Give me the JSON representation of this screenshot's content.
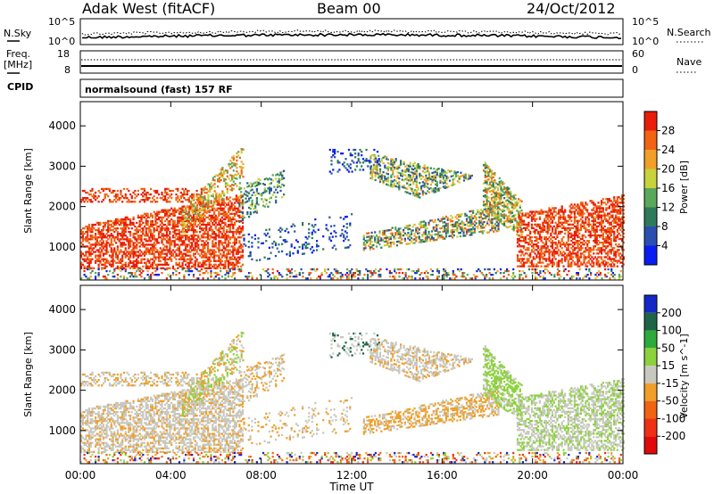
{
  "header": {
    "radar_title": "Adak West (fitACF)",
    "beam": "Beam 00",
    "date": "24/Oct/2012"
  },
  "noise_panel": {
    "left_label": "N.Sky",
    "right_label": "N.Search",
    "ticks": [
      "10^5",
      "10^0"
    ]
  },
  "freq_panel": {
    "left_label_line1": "Freq.",
    "left_label_line2": "[MHz]",
    "left_ticks": [
      "18",
      "8"
    ],
    "right_label": "Nave",
    "right_ticks": [
      "60",
      "0"
    ]
  },
  "cpid_panel": {
    "label": "CPID",
    "text": "normalsound (fast) 157 RF"
  },
  "x_axis": {
    "label": "Time UT",
    "ticks": [
      "00:00",
      "04:00",
      "08:00",
      "12:00",
      "16:00",
      "20:00",
      "00:00"
    ],
    "range_hours": [
      0,
      24
    ]
  },
  "chart_data": [
    {
      "type": "heatmap",
      "title": "",
      "xlabel": "Time UT",
      "ylabel": "Slant Range [km]",
      "xlim": [
        0,
        24
      ],
      "ylim": [
        180,
        4600
      ],
      "yticks": [
        "1000",
        "2000",
        "3000",
        "4000"
      ],
      "colorbar": {
        "label": "Power [dB]",
        "ticks": [
          "4",
          "8",
          "12",
          "16",
          "20",
          "24",
          "28"
        ],
        "range": [
          0,
          30
        ],
        "colors": [
          "#0a1df0",
          "#2b4fb0",
          "#2f7a5a",
          "#5aa85a",
          "#c8d23c",
          "#f0a028",
          "#f06414",
          "#e81e0a"
        ]
      }
    },
    {
      "type": "heatmap",
      "title": "",
      "xlabel": "Time UT",
      "ylabel": "Slant Range [km]",
      "xlim": [
        0,
        24
      ],
      "ylim": [
        180,
        4600
      ],
      "yticks": [
        "1000",
        "2000",
        "3000",
        "4000"
      ],
      "colorbar": {
        "label": "Velocity [m s^-1]",
        "ticks": [
          "200",
          "100",
          "50",
          "15",
          "-15",
          "-50",
          "-100",
          "-200"
        ],
        "colors": [
          "#1428c8",
          "#1e6446",
          "#2daa3c",
          "#8cd23c",
          "#c8c8c0",
          "#f0a028",
          "#f06414",
          "#f03014",
          "#e00a0a"
        ]
      }
    }
  ]
}
